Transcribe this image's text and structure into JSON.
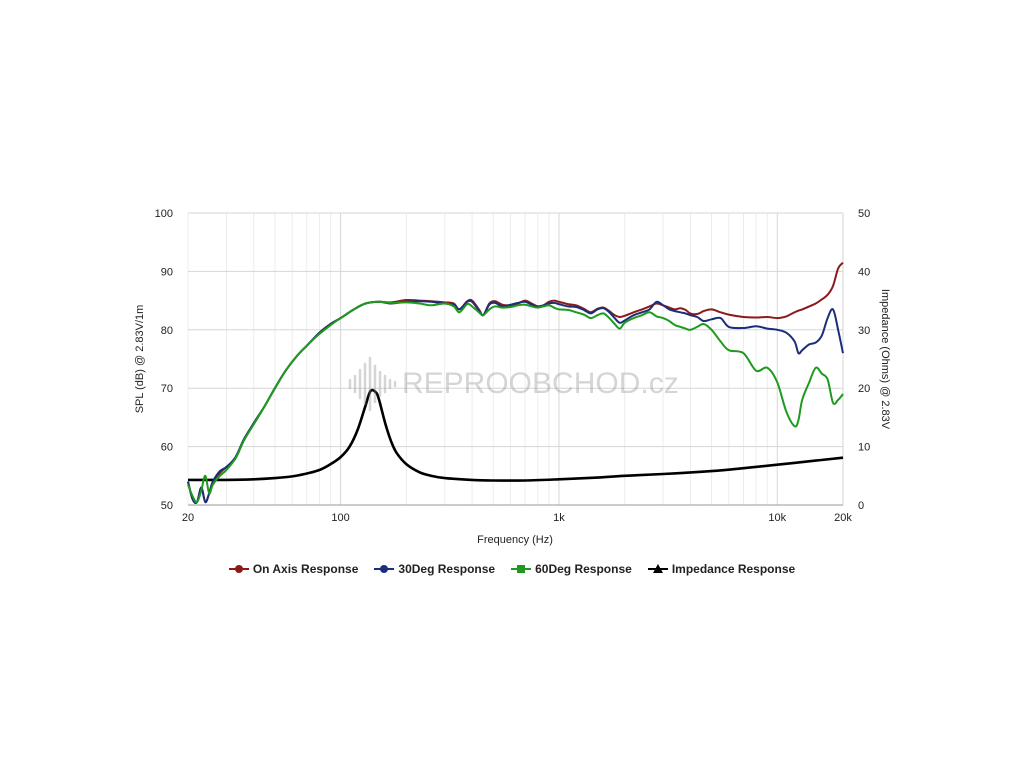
{
  "watermark": {
    "text": "REPROOBCHOD.cz",
    "icon": "sound-wave-icon"
  },
  "chart_data": {
    "type": "line",
    "xlabel": "Frequency (Hz)",
    "ylabel": "SPL (dB) @ 2.83V/1m",
    "y2label": "Impedance (Ohms) @ 2.83V",
    "xscale": "log",
    "xlim": [
      20,
      20000
    ],
    "ylim": [
      50,
      100
    ],
    "y2lim": [
      0,
      50
    ],
    "grid": true,
    "legend_position": "bottom",
    "x_ticks": [
      {
        "value": 20,
        "label": "20"
      },
      {
        "value": 100,
        "label": "100"
      },
      {
        "value": 1000,
        "label": "1k"
      },
      {
        "value": 10000,
        "label": "10k"
      },
      {
        "value": 20000,
        "label": "20k"
      }
    ],
    "y_ticks": [
      {
        "value": 50,
        "label": "50"
      },
      {
        "value": 60,
        "label": "60"
      },
      {
        "value": 70,
        "label": "70"
      },
      {
        "value": 80,
        "label": "80"
      },
      {
        "value": 90,
        "label": "90"
      },
      {
        "value": 100,
        "label": "100"
      }
    ],
    "y2_ticks": [
      {
        "value": 0,
        "label": "0"
      },
      {
        "value": 10,
        "label": "10"
      },
      {
        "value": 20,
        "label": "20"
      },
      {
        "value": 30,
        "label": "30"
      },
      {
        "value": 40,
        "label": "40"
      },
      {
        "value": 50,
        "label": "50"
      }
    ],
    "series": [
      {
        "name": "On Axis Response",
        "color": "#8b1a1a",
        "marker": "circle",
        "axis": "left",
        "points": [
          [
            20,
            54
          ],
          [
            21,
            51
          ],
          [
            22,
            50.5
          ],
          [
            23,
            53
          ],
          [
            24,
            50.5
          ],
          [
            25,
            52
          ],
          [
            26,
            54
          ],
          [
            28,
            55.5
          ],
          [
            30,
            56.5
          ],
          [
            33,
            58
          ],
          [
            36,
            61
          ],
          [
            40,
            64
          ],
          [
            45,
            67
          ],
          [
            50,
            70
          ],
          [
            56,
            73
          ],
          [
            63,
            75.5
          ],
          [
            71,
            77.5
          ],
          [
            80,
            79.5
          ],
          [
            90,
            81
          ],
          [
            100,
            82
          ],
          [
            115,
            83.5
          ],
          [
            130,
            84.5
          ],
          [
            150,
            84.8
          ],
          [
            170,
            84.7
          ],
          [
            200,
            85.1
          ],
          [
            230,
            85
          ],
          [
            260,
            84.9
          ],
          [
            300,
            84.7
          ],
          [
            330,
            84.5
          ],
          [
            350,
            83.5
          ],
          [
            380,
            84.9
          ],
          [
            400,
            85
          ],
          [
            430,
            83.5
          ],
          [
            450,
            82.5
          ],
          [
            480,
            84.5
          ],
          [
            510,
            84.9
          ],
          [
            550,
            84.3
          ],
          [
            600,
            84.2
          ],
          [
            650,
            84.5
          ],
          [
            700,
            85
          ],
          [
            750,
            84.5
          ],
          [
            800,
            84
          ],
          [
            850,
            84.2
          ],
          [
            900,
            84.8
          ],
          [
            950,
            85
          ],
          [
            1000,
            84.8
          ],
          [
            1100,
            84.4
          ],
          [
            1200,
            84.2
          ],
          [
            1300,
            83.6
          ],
          [
            1400,
            83
          ],
          [
            1500,
            83.6
          ],
          [
            1600,
            83.8
          ],
          [
            1700,
            83.2
          ],
          [
            1800,
            82.5
          ],
          [
            1900,
            82.2
          ],
          [
            2000,
            82.4
          ],
          [
            2200,
            83
          ],
          [
            2400,
            83.5
          ],
          [
            2600,
            84
          ],
          [
            2800,
            84.5
          ],
          [
            3000,
            84.2
          ],
          [
            3200,
            83.8
          ],
          [
            3400,
            83.5
          ],
          [
            3600,
            83.7
          ],
          [
            3800,
            83.4
          ],
          [
            4000,
            82.8
          ],
          [
            4300,
            82.7
          ],
          [
            4600,
            83.2
          ],
          [
            5000,
            83.5
          ],
          [
            5500,
            83
          ],
          [
            6000,
            82.6
          ],
          [
            7000,
            82.2
          ],
          [
            8000,
            82.1
          ],
          [
            9000,
            82.2
          ],
          [
            10000,
            82
          ],
          [
            11000,
            82.3
          ],
          [
            12000,
            83
          ],
          [
            13000,
            83.5
          ],
          [
            14000,
            84
          ],
          [
            15000,
            84.5
          ],
          [
            16000,
            85.2
          ],
          [
            17000,
            86
          ],
          [
            18000,
            87.5
          ],
          [
            19000,
            90.5
          ],
          [
            20000,
            91.5
          ]
        ]
      },
      {
        "name": "30Deg Response",
        "color": "#1a2e7a",
        "marker": "diamond",
        "axis": "left",
        "points": [
          [
            20,
            54
          ],
          [
            21,
            51
          ],
          [
            22,
            50.5
          ],
          [
            23,
            53
          ],
          [
            24,
            50.5
          ],
          [
            25,
            52
          ],
          [
            26,
            54
          ],
          [
            28,
            55.8
          ],
          [
            30,
            56.5
          ],
          [
            33,
            58.2
          ],
          [
            36,
            61.2
          ],
          [
            40,
            64
          ],
          [
            45,
            67
          ],
          [
            50,
            70
          ],
          [
            56,
            73
          ],
          [
            63,
            75.5
          ],
          [
            71,
            77.5
          ],
          [
            80,
            79.5
          ],
          [
            90,
            81
          ],
          [
            100,
            82
          ],
          [
            115,
            83.5
          ],
          [
            130,
            84.5
          ],
          [
            150,
            84.8
          ],
          [
            170,
            84.5
          ],
          [
            200,
            84.8
          ],
          [
            230,
            84.9
          ],
          [
            260,
            84.8
          ],
          [
            300,
            84.5
          ],
          [
            330,
            84.3
          ],
          [
            350,
            83.5
          ],
          [
            380,
            84.8
          ],
          [
            400,
            84.8
          ],
          [
            430,
            83.3
          ],
          [
            450,
            82.5
          ],
          [
            480,
            84.3
          ],
          [
            510,
            84.6
          ],
          [
            550,
            84
          ],
          [
            600,
            84.3
          ],
          [
            650,
            84.6
          ],
          [
            700,
            84.8
          ],
          [
            750,
            84.3
          ],
          [
            800,
            84
          ],
          [
            850,
            84.2
          ],
          [
            900,
            84.5
          ],
          [
            950,
            84.6
          ],
          [
            1000,
            84.4
          ],
          [
            1100,
            84
          ],
          [
            1200,
            83.9
          ],
          [
            1300,
            83.4
          ],
          [
            1400,
            82.8
          ],
          [
            1500,
            83.5
          ],
          [
            1600,
            83.7
          ],
          [
            1700,
            83
          ],
          [
            1800,
            82
          ],
          [
            1900,
            81.2
          ],
          [
            2000,
            81.6
          ],
          [
            2200,
            82.5
          ],
          [
            2400,
            83
          ],
          [
            2600,
            83.5
          ],
          [
            2800,
            84.8
          ],
          [
            3000,
            84.2
          ],
          [
            3200,
            83.5
          ],
          [
            3400,
            83.2
          ],
          [
            3600,
            83
          ],
          [
            3800,
            82.8
          ],
          [
            4000,
            82.5
          ],
          [
            4300,
            82.2
          ],
          [
            4600,
            81.5
          ],
          [
            5000,
            81.8
          ],
          [
            5500,
            82
          ],
          [
            6000,
            80.5
          ],
          [
            7000,
            80.3
          ],
          [
            8000,
            80.6
          ],
          [
            9000,
            80.2
          ],
          [
            10000,
            80
          ],
          [
            11000,
            79.5
          ],
          [
            12000,
            78
          ],
          [
            12500,
            76
          ],
          [
            13000,
            76.5
          ],
          [
            14000,
            77.5
          ],
          [
            15000,
            77.8
          ],
          [
            16000,
            79
          ],
          [
            17000,
            82
          ],
          [
            18000,
            83.5
          ],
          [
            19000,
            80
          ],
          [
            20000,
            76
          ]
        ]
      },
      {
        "name": "60Deg Response",
        "color": "#1e9a1e",
        "marker": "square",
        "axis": "left",
        "points": [
          [
            20,
            53.5
          ],
          [
            21,
            51.5
          ],
          [
            22,
            50.5
          ],
          [
            23,
            52.5
          ],
          [
            24,
            55
          ],
          [
            25,
            52
          ],
          [
            26,
            53.5
          ],
          [
            28,
            55
          ],
          [
            30,
            56
          ],
          [
            33,
            58
          ],
          [
            36,
            61
          ],
          [
            40,
            63.8
          ],
          [
            45,
            67
          ],
          [
            50,
            70
          ],
          [
            56,
            73
          ],
          [
            63,
            75.5
          ],
          [
            71,
            77.5
          ],
          [
            80,
            79.3
          ],
          [
            90,
            80.8
          ],
          [
            100,
            82
          ],
          [
            115,
            83.5
          ],
          [
            130,
            84.5
          ],
          [
            150,
            84.8
          ],
          [
            170,
            84.6
          ],
          [
            200,
            84.7
          ],
          [
            230,
            84.5
          ],
          [
            260,
            84.2
          ],
          [
            300,
            84.5
          ],
          [
            330,
            84
          ],
          [
            350,
            83
          ],
          [
            380,
            84.4
          ],
          [
            400,
            84
          ],
          [
            430,
            83
          ],
          [
            450,
            82.5
          ],
          [
            480,
            83.5
          ],
          [
            510,
            84
          ],
          [
            550,
            83.8
          ],
          [
            600,
            83.9
          ],
          [
            650,
            84.2
          ],
          [
            700,
            84.3
          ],
          [
            750,
            84
          ],
          [
            800,
            83.8
          ],
          [
            850,
            84
          ],
          [
            900,
            84.2
          ],
          [
            950,
            83.8
          ],
          [
            1000,
            83.5
          ],
          [
            1100,
            83.4
          ],
          [
            1200,
            83
          ],
          [
            1300,
            82.6
          ],
          [
            1400,
            82
          ],
          [
            1500,
            82.5
          ],
          [
            1600,
            82.8
          ],
          [
            1700,
            82
          ],
          [
            1800,
            81
          ],
          [
            1900,
            80.2
          ],
          [
            2000,
            81.2
          ],
          [
            2200,
            82
          ],
          [
            2400,
            82.5
          ],
          [
            2600,
            83
          ],
          [
            2800,
            82.3
          ],
          [
            3000,
            82
          ],
          [
            3200,
            81.5
          ],
          [
            3400,
            80.8
          ],
          [
            3600,
            80.5
          ],
          [
            3800,
            80.2
          ],
          [
            4000,
            80
          ],
          [
            4300,
            80.5
          ],
          [
            4600,
            81
          ],
          [
            5000,
            80
          ],
          [
            5500,
            78
          ],
          [
            6000,
            76.5
          ],
          [
            7000,
            76
          ],
          [
            8000,
            73
          ],
          [
            9000,
            73.5
          ],
          [
            10000,
            71
          ],
          [
            11000,
            66
          ],
          [
            12000,
            63.5
          ],
          [
            12500,
            64.5
          ],
          [
            13000,
            68
          ],
          [
            14000,
            71
          ],
          [
            15000,
            73.5
          ],
          [
            16000,
            72.5
          ],
          [
            17000,
            71.5
          ],
          [
            18000,
            67.5
          ],
          [
            19000,
            68
          ],
          [
            20000,
            69
          ]
        ]
      },
      {
        "name": "Impedance Response",
        "color": "#000000",
        "marker": "triangle",
        "axis": "right",
        "points": [
          [
            20,
            4.3
          ],
          [
            30,
            4.3
          ],
          [
            40,
            4.4
          ],
          [
            50,
            4.6
          ],
          [
            60,
            4.9
          ],
          [
            70,
            5.4
          ],
          [
            80,
            6
          ],
          [
            90,
            7
          ],
          [
            100,
            8.2
          ],
          [
            110,
            10
          ],
          [
            120,
            13
          ],
          [
            130,
            17
          ],
          [
            137,
            19.5
          ],
          [
            145,
            19.3
          ],
          [
            150,
            18
          ],
          [
            160,
            14
          ],
          [
            170,
            11
          ],
          [
            180,
            9
          ],
          [
            200,
            7
          ],
          [
            230,
            5.6
          ],
          [
            260,
            5
          ],
          [
            300,
            4.6
          ],
          [
            400,
            4.3
          ],
          [
            500,
            4.2
          ],
          [
            700,
            4.2
          ],
          [
            1000,
            4.4
          ],
          [
            1500,
            4.7
          ],
          [
            2000,
            5
          ],
          [
            3000,
            5.3
          ],
          [
            5000,
            5.8
          ],
          [
            7000,
            6.3
          ],
          [
            10000,
            6.9
          ],
          [
            15000,
            7.6
          ],
          [
            20000,
            8.1
          ]
        ]
      }
    ]
  }
}
